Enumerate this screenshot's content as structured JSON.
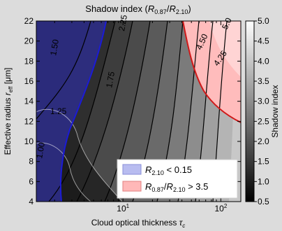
{
  "chart_data": {
    "type": "heatmap",
    "title": "Shadow index (R₀.₈₇/R₂.₁₀)",
    "title_parts": {
      "prefix": "Shadow index (",
      "r1": "R",
      "r1_sub": "0.87",
      "slash": "/",
      "r2": "R",
      "r2_sub": "2.10",
      "suffix": ")"
    },
    "xlabel": {
      "text": "Cloud optical thickness ",
      "symbol": "τ",
      "sub": "c"
    },
    "ylabel": {
      "text": "Effective radius ",
      "symbol": "r",
      "sub": "eff",
      "unit": " [μm]"
    },
    "x_scale": "log",
    "xlim": [
      1.3,
      160
    ],
    "ylim": [
      4,
      22
    ],
    "x_ticks": [
      {
        "value": 10,
        "base": "10",
        "exp": "1"
      },
      {
        "value": 100,
        "base": "10",
        "exp": "2"
      }
    ],
    "y_ticks": [
      4,
      6,
      8,
      10,
      12,
      14,
      16,
      18,
      20,
      22
    ],
    "colorbar": {
      "label": "Shadow index",
      "range": [
        0.5,
        5.0
      ],
      "ticks": [
        "0.5",
        "1.0",
        "1.5",
        "2.0",
        "2.5",
        "3.0",
        "3.5",
        "4.0",
        "4.5",
        "5.0"
      ],
      "colormap": "greys"
    },
    "contour_labels": [
      "1.00",
      "1.25",
      "1.50",
      "1.75",
      "2.25",
      "4.25",
      "4.50",
      "5.0"
    ],
    "legend": {
      "position": "lower-right",
      "entries": [
        {
          "symbol": "R",
          "sub": "2.10",
          "rest": " < 0.15",
          "color": "#1a1aa8",
          "fill": "#b8bcf0"
        },
        {
          "symbol": "R",
          "sub": "0.87",
          "slash": "/",
          "symbol2": "R",
          "sub2": "2.10",
          "rest": " > 3.5",
          "color": "#c01010",
          "fill": "#ffb8b8"
        }
      ]
    },
    "regions": [
      {
        "name": "R2.10 < 0.15",
        "color": "#2a2a8a"
      },
      {
        "name": "R0.87/R2.10 > 3.5",
        "color": "#ffc8c8"
      }
    ],
    "grid": false
  }
}
